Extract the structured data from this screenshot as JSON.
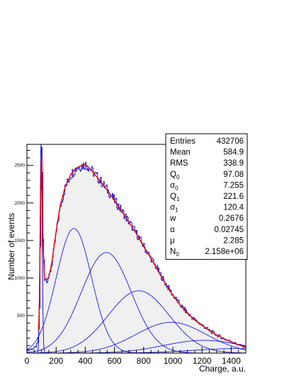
{
  "chart_data": {
    "type": "histogram",
    "xlabel": "Charge, a.u.",
    "ylabel": "Number of events",
    "xlim": [
      0,
      1500
    ],
    "ylim": [
      0,
      2780
    ],
    "x_ticks": [
      0,
      200,
      400,
      600,
      800,
      1000,
      1200,
      1400
    ],
    "y_ticks": [
      500,
      1000,
      1500,
      2000,
      2500
    ],
    "pedestal": {
      "mean": 97.08,
      "sigma": 7.255,
      "peak": 2780
    },
    "histogram_envelope": {
      "x": [
        0,
        40,
        60,
        70,
        80,
        85,
        90,
        95,
        100,
        105,
        110,
        120,
        135,
        150,
        170,
        190,
        210,
        230,
        260,
        300,
        340,
        380,
        400,
        420,
        440,
        460,
        500,
        550,
        600,
        650,
        700,
        750,
        800,
        850,
        900,
        950,
        1000,
        1050,
        1100,
        1150,
        1200,
        1250,
        1300,
        1350,
        1400,
        1450,
        1500
      ],
      "y": [
        40,
        60,
        90,
        130,
        300,
        600,
        1400,
        2200,
        2700,
        2400,
        1500,
        1000,
        980,
        1010,
        1200,
        1480,
        1750,
        1980,
        2200,
        2380,
        2470,
        2500,
        2510,
        2480,
        2440,
        2390,
        2300,
        2170,
        2030,
        1890,
        1740,
        1590,
        1420,
        1260,
        1090,
        920,
        770,
        640,
        530,
        440,
        370,
        300,
        240,
        190,
        150,
        110,
        80
      ]
    },
    "components": [
      {
        "mean": 322,
        "sigma": 121,
        "amplitude": 1660
      },
      {
        "mean": 544,
        "sigma": 171,
        "amplitude": 1340
      },
      {
        "mean": 766,
        "sigma": 209,
        "amplitude": 830
      },
      {
        "mean": 988,
        "sigma": 241,
        "amplitude": 410
      },
      {
        "mean": 1210,
        "sigma": 270,
        "amplitude": 170
      },
      {
        "mean": 1432,
        "sigma": 296,
        "amplitude": 60
      }
    ],
    "colors": {
      "histogram": "#0000cc",
      "fill": "#f0f0f0",
      "fit": "#ee0000",
      "components": "#0000ee"
    },
    "stats_box": [
      {
        "label": "Entries",
        "value": "432706"
      },
      {
        "label": "Mean",
        "value": "584.9"
      },
      {
        "label": "RMS",
        "value": "338.9"
      },
      {
        "label": "Q",
        "sub": "0",
        "value": "97.08"
      },
      {
        "label": "σ",
        "sub": "0",
        "value": "7.255"
      },
      {
        "label": "Q",
        "sub": "1",
        "value": "221.6"
      },
      {
        "label": "σ",
        "sub": "1",
        "value": "120.4"
      },
      {
        "label": "w",
        "value": "0.2676"
      },
      {
        "label": "α",
        "value": "0.02745"
      },
      {
        "label": "μ",
        "value": "2.285"
      },
      {
        "label": "N",
        "sub": "0",
        "value": "2.158e+06"
      }
    ]
  }
}
